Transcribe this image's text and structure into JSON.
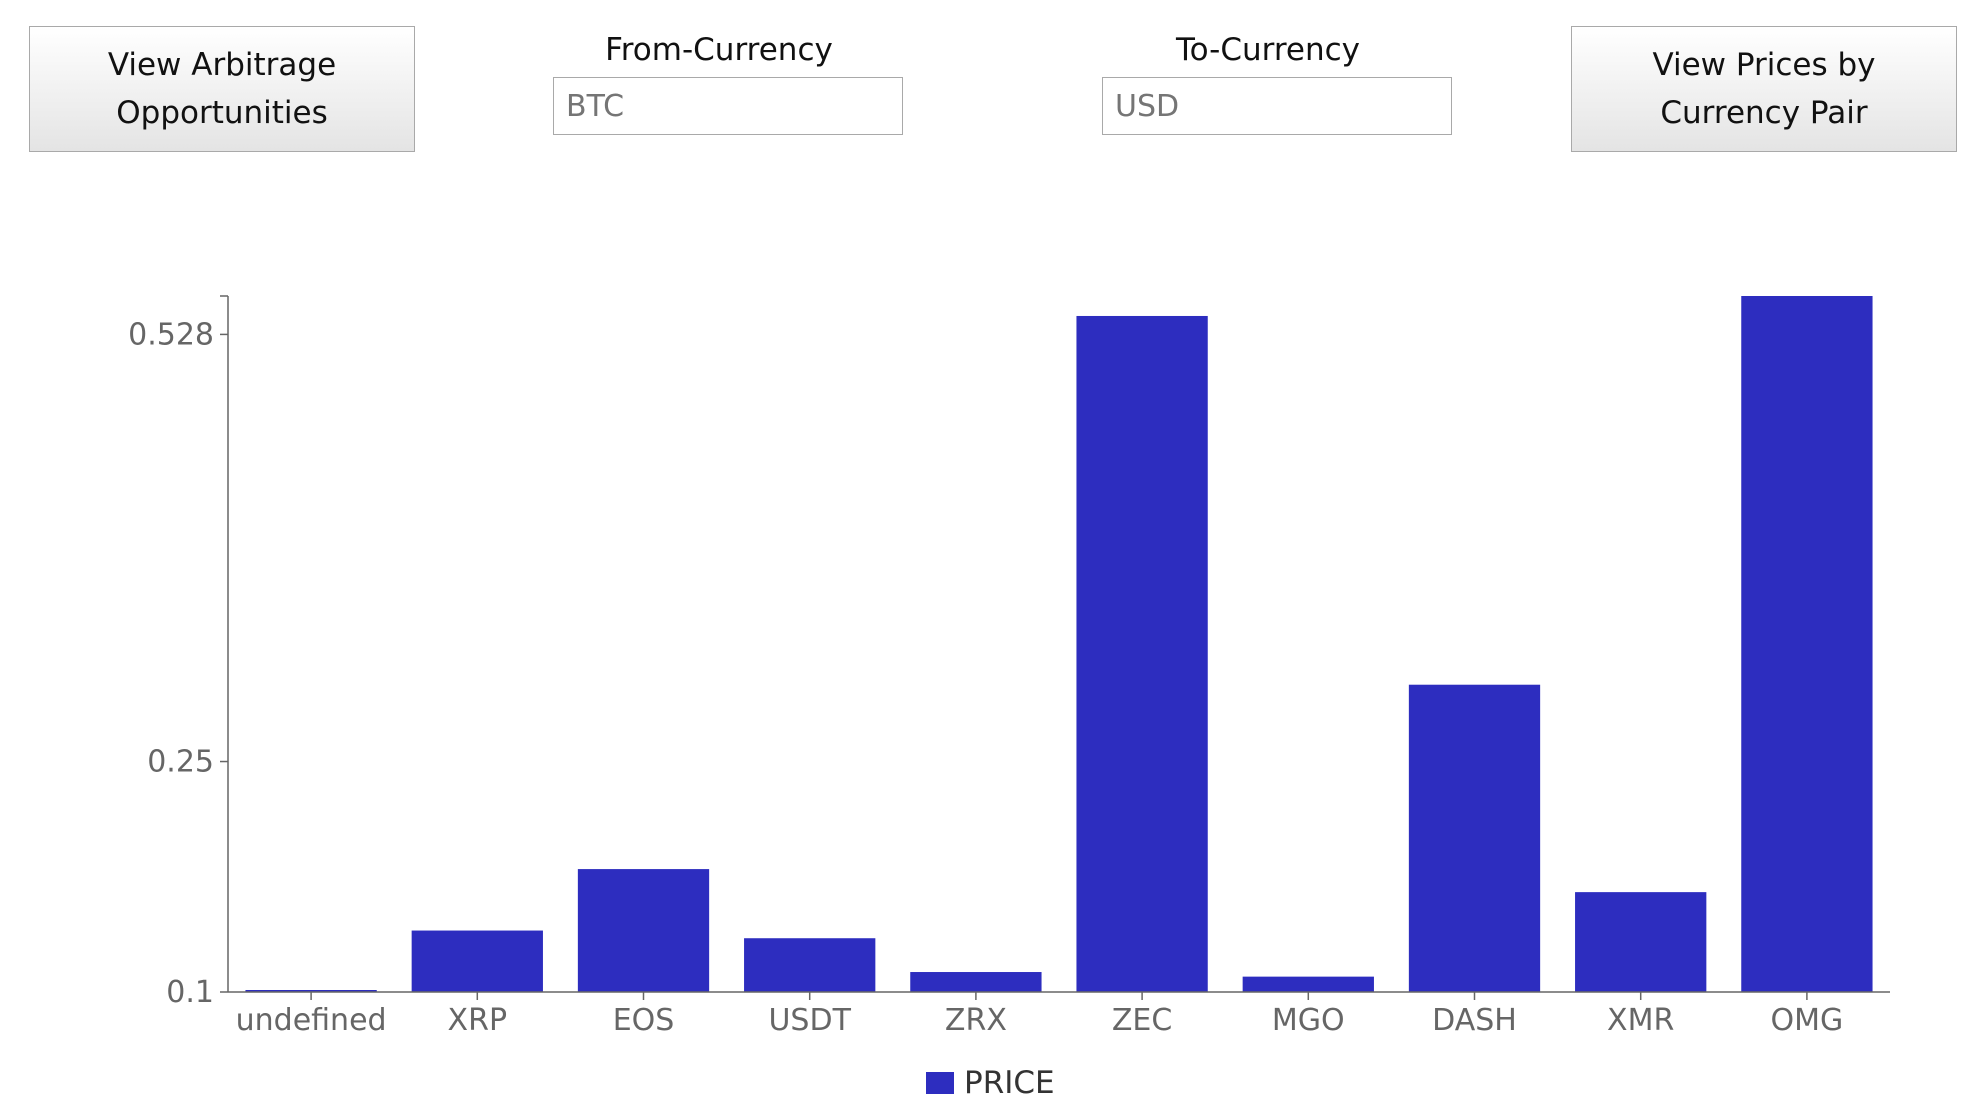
{
  "controls": {
    "arbitrage_button_label": "View Arbitrage\nOpportunities",
    "from_currency_label": "From-Currency",
    "from_currency_placeholder": "BTC",
    "to_currency_label": "To-Currency",
    "to_currency_placeholder": "USD",
    "pairs_button_label": "View Prices by\nCurrency Pair"
  },
  "chart_data": {
    "type": "bar",
    "categories": [
      "undefined",
      "XRP",
      "EOS",
      "USDT",
      "ZRX",
      "ZEC",
      "MGO",
      "DASH",
      "XMR",
      "OMG"
    ],
    "series": [
      {
        "name": "PRICE",
        "values": [
          0.1,
          0.14,
          0.18,
          0.135,
          0.113,
          0.54,
          0.11,
          0.3,
          0.165,
          0.553
        ]
      }
    ],
    "yticks": [
      "0.1",
      "0.25",
      "0.528"
    ],
    "ylim": [
      0.1,
      0.553
    ],
    "bar_color": "#2d2dbf",
    "legend_position": "bottom-center",
    "grid": false
  }
}
